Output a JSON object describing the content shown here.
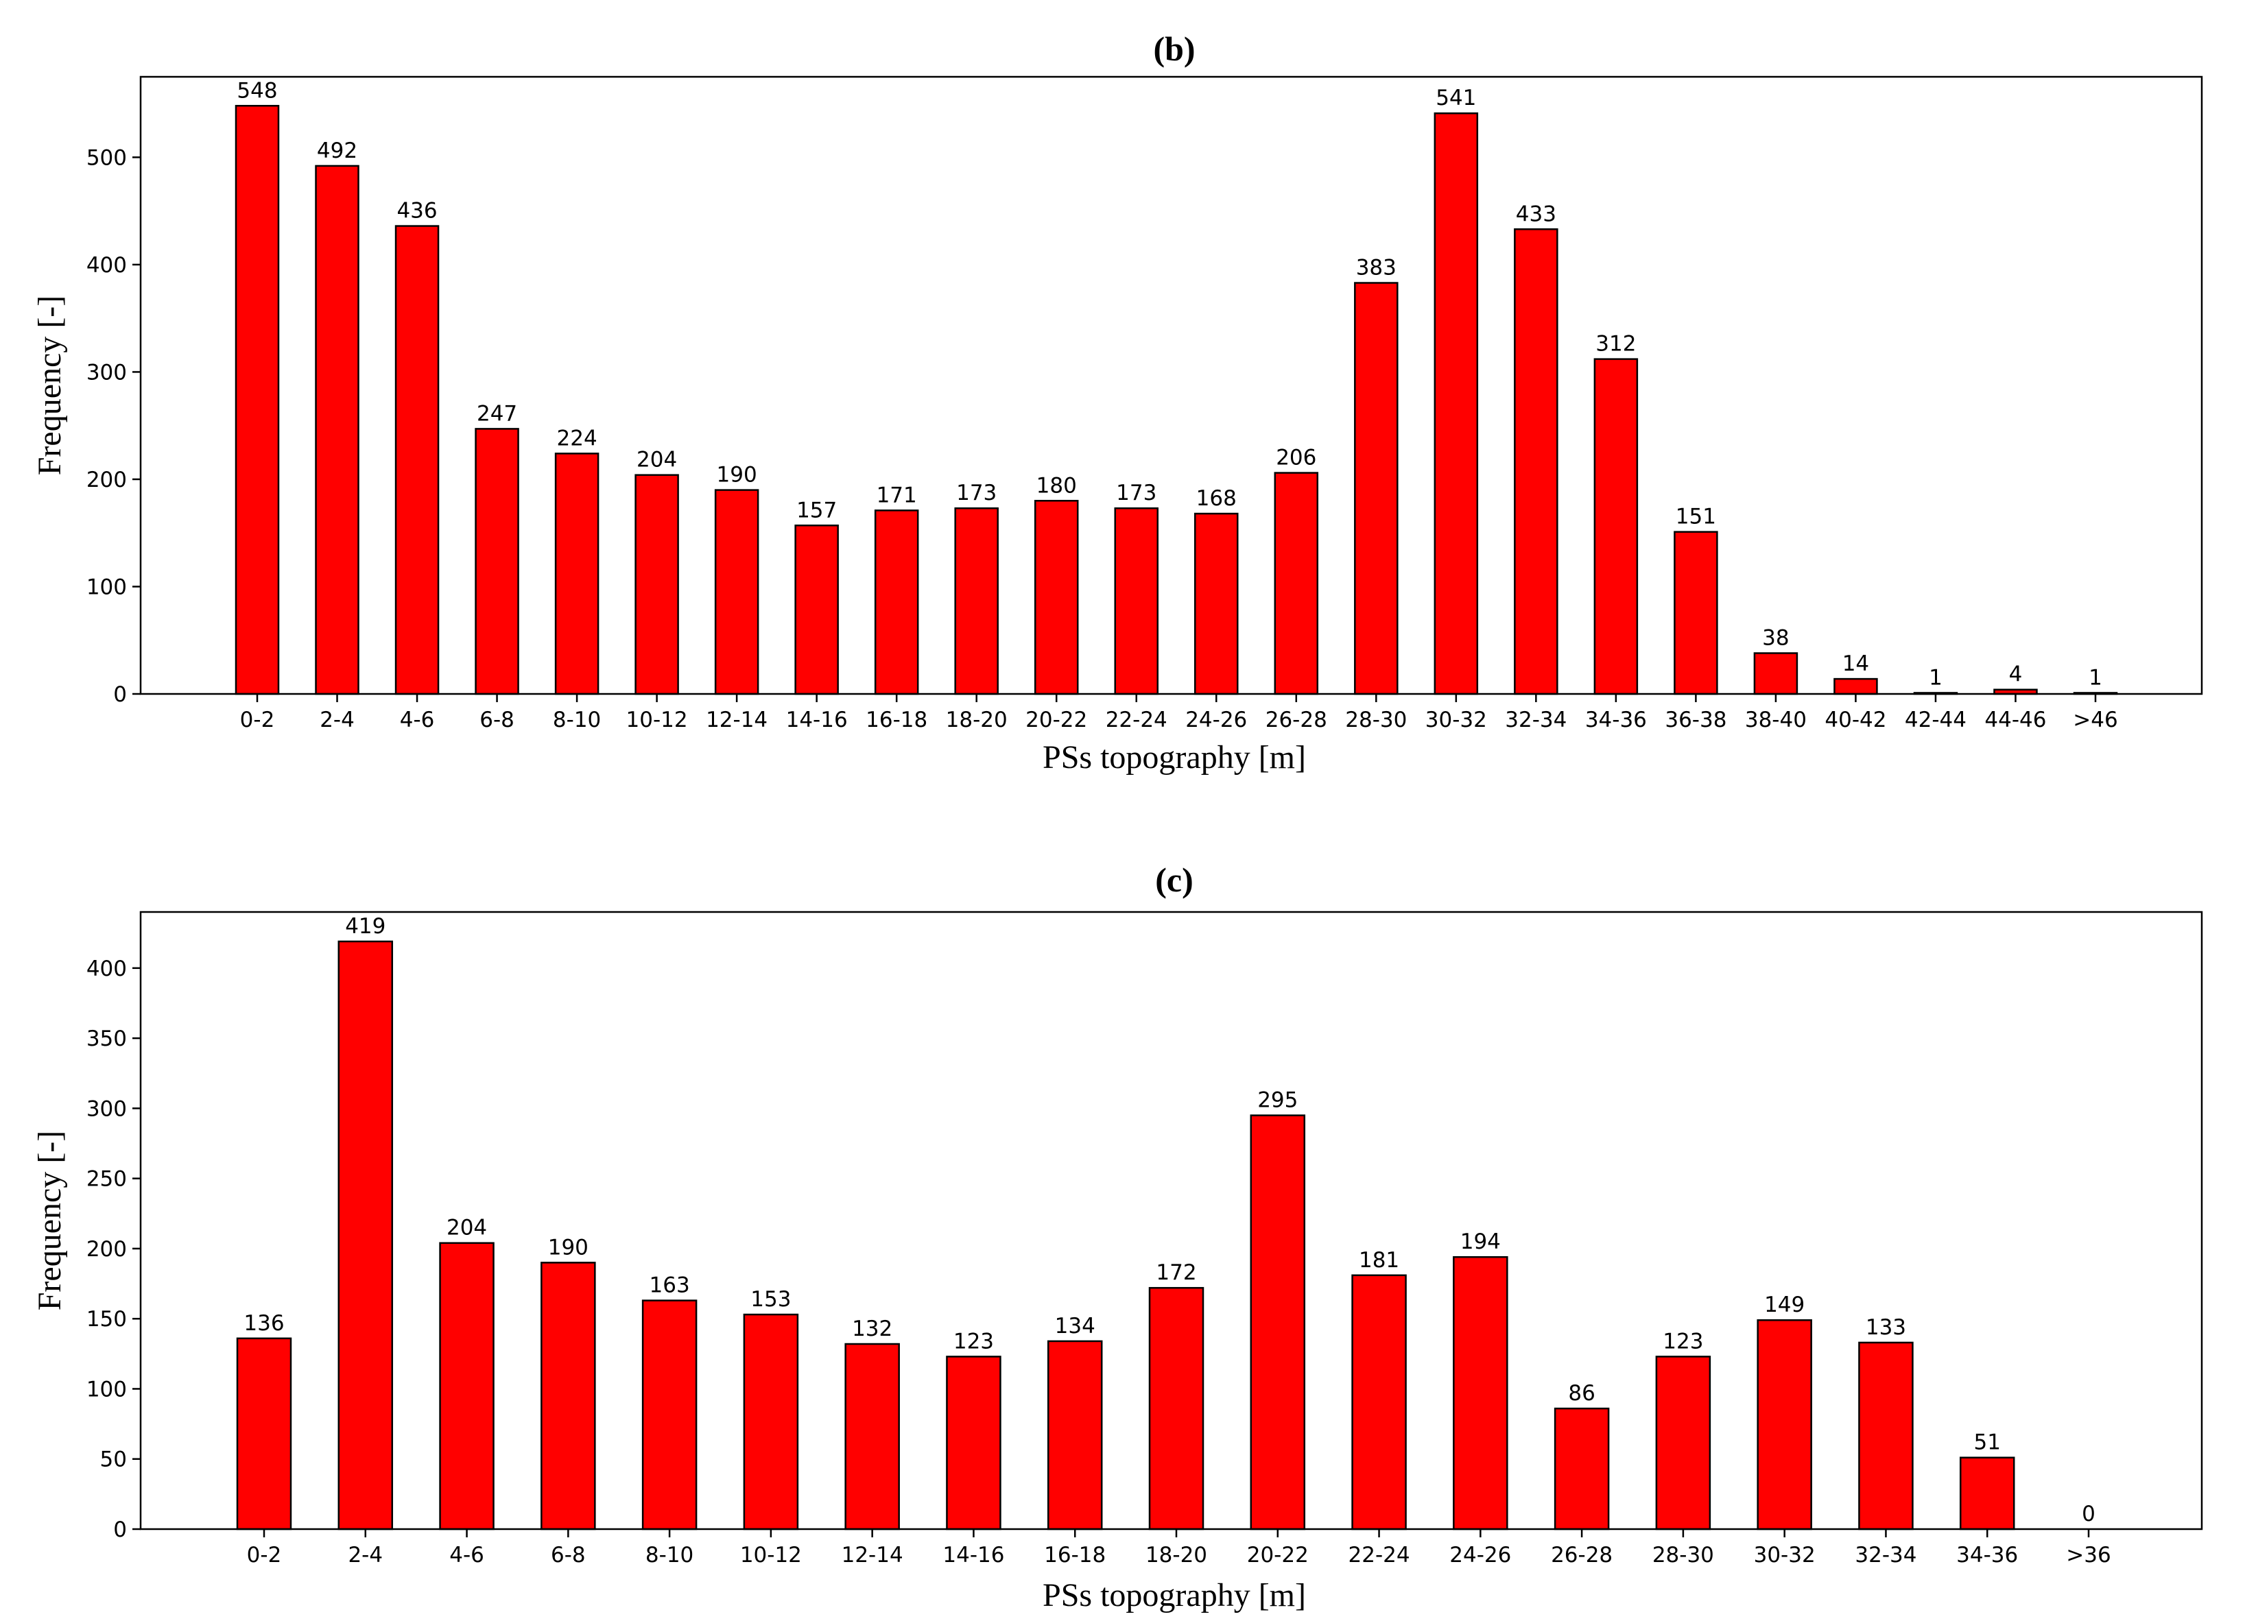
{
  "chart_data": [
    {
      "type": "bar",
      "title": "(b)",
      "xlabel": "PSs topography [m]",
      "ylabel": "Frequency [-]",
      "categories": [
        "0-2",
        "2-4",
        "4-6",
        "6-8",
        "8-10",
        "10-12",
        "12-14",
        "14-16",
        "16-18",
        "18-20",
        "20-22",
        "22-24",
        "24-26",
        "26-28",
        "28-30",
        "30-32",
        "32-34",
        "34-36",
        "36-38",
        "38-40",
        "40-42",
        "42-44",
        "44-46",
        ">46"
      ],
      "values": [
        548,
        492,
        436,
        247,
        224,
        204,
        190,
        157,
        171,
        173,
        180,
        173,
        168,
        206,
        383,
        541,
        433,
        312,
        151,
        38,
        14,
        1,
        4,
        1
      ],
      "yticks": [
        0,
        100,
        200,
        300,
        400,
        500
      ],
      "ylim": [
        0,
        575
      ],
      "bar_color": "#ff0000",
      "grid": false
    },
    {
      "type": "bar",
      "title": "(c)",
      "xlabel": "PSs topography [m]",
      "ylabel": "Frequency [-]",
      "categories": [
        "0-2",
        "2-4",
        "4-6",
        "6-8",
        "8-10",
        "10-12",
        "12-14",
        "14-16",
        "16-18",
        "18-20",
        "20-22",
        "22-24",
        "24-26",
        "26-28",
        "28-30",
        "30-32",
        "32-34",
        "34-36",
        ">36"
      ],
      "values": [
        136,
        419,
        204,
        190,
        163,
        153,
        132,
        123,
        134,
        172,
        295,
        181,
        194,
        86,
        123,
        149,
        133,
        51,
        0
      ],
      "yticks": [
        0,
        50,
        100,
        150,
        200,
        250,
        300,
        350,
        400
      ],
      "ylim": [
        0,
        440
      ],
      "bar_color": "#ff0000",
      "grid": false
    }
  ]
}
